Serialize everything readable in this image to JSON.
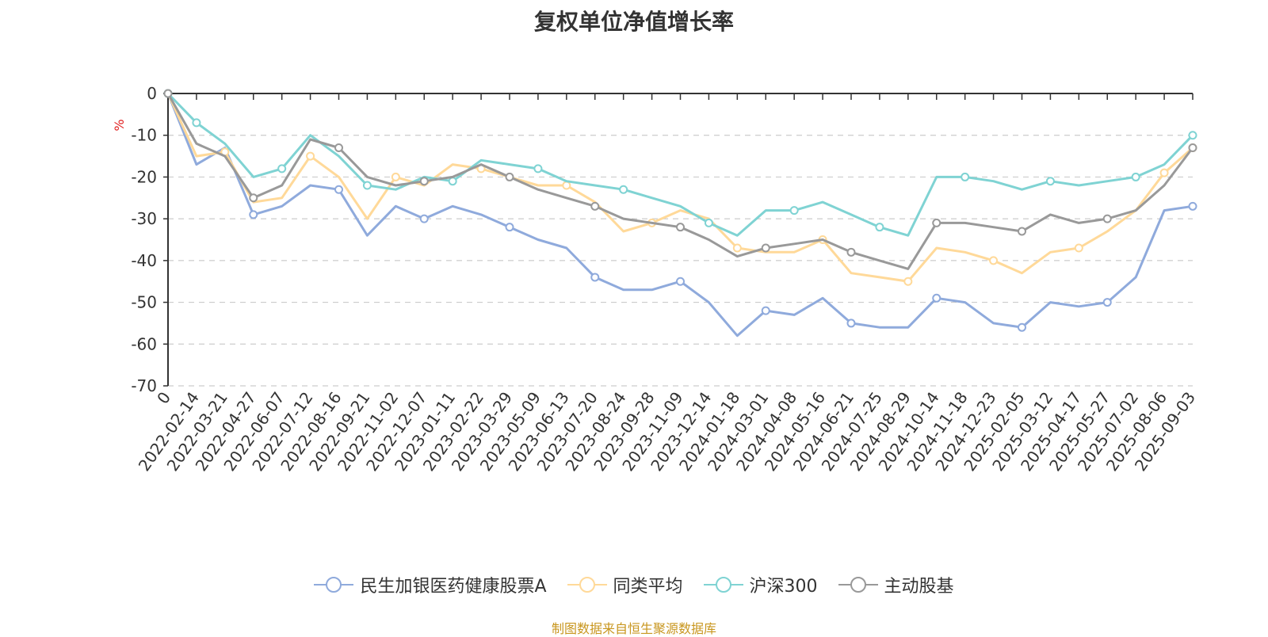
{
  "chart_data": {
    "type": "line",
    "title": "复权单位净值增长率",
    "ylabel": "%",
    "ylim": [
      -70,
      0
    ],
    "yticks": [
      "0",
      "-10",
      "-20",
      "-30",
      "-40",
      "-50",
      "-60",
      "-70"
    ],
    "x_ticks": [
      "0",
      "2022-02-14",
      "2022-03-21",
      "2022-04-27",
      "2022-06-07",
      "2022-07-12",
      "2022-08-16",
      "2022-09-21",
      "2022-11-02",
      "2022-12-07",
      "2023-01-11",
      "2023-02-22",
      "2023-03-29",
      "2023-05-09",
      "2023-06-13",
      "2023-07-20",
      "2023-08-24",
      "2023-09-28",
      "2023-11-09",
      "2023-12-14",
      "2024-01-18",
      "2024-03-01",
      "2024-04-08",
      "2024-05-16",
      "2024-06-21",
      "2024-07-25",
      "2024-08-29",
      "2024-10-14",
      "2024-11-18",
      "2024-12-23",
      "2025-02-05",
      "2025-03-12",
      "2025-04-17",
      "2025-05-27",
      "2025-07-02",
      "2025-08-06",
      "2025-09-03"
    ],
    "grid": true,
    "legend_position": "bottom",
    "series": [
      {
        "name": "民生加银医药健康股票A",
        "color": "#8faadc",
        "values": [
          0,
          -17,
          -13,
          -29,
          -27,
          -22,
          -23,
          -34,
          -27,
          -30,
          -27,
          -29,
          -32,
          -35,
          -37,
          -44,
          -47,
          -47,
          -45,
          -50,
          -58,
          -52,
          -53,
          -49,
          -55,
          -56,
          -56,
          -49,
          -50,
          -55,
          -56,
          -50,
          -51,
          -50,
          -44,
          -28,
          -27
        ]
      },
      {
        "name": "同类平均",
        "color": "#ffd999",
        "values": [
          0,
          -15,
          -14,
          -26,
          -25,
          -15,
          -20,
          -30,
          -20,
          -22,
          -17,
          -18,
          -20,
          -22,
          -22,
          -26,
          -33,
          -31,
          -28,
          -30,
          -37,
          -38,
          -38,
          -35,
          -43,
          -44,
          -45,
          -37,
          -38,
          -40,
          -43,
          -38,
          -37,
          -33,
          -28,
          -19,
          -13
        ]
      },
      {
        "name": "沪深300",
        "color": "#7fd3d3",
        "values": [
          0,
          -7,
          -12,
          -20,
          -18,
          -10,
          -15,
          -22,
          -23,
          -20,
          -21,
          -16,
          -17,
          -18,
          -21,
          -22,
          -23,
          -25,
          -27,
          -31,
          -34,
          -28,
          -28,
          -26,
          -29,
          -32,
          -34,
          -20,
          -20,
          -21,
          -23,
          -21,
          -22,
          -21,
          -20,
          -17,
          -10
        ]
      },
      {
        "name": "主动股基",
        "color": "#999999",
        "values": [
          0,
          -12,
          -15,
          -25,
          -22,
          -11,
          -13,
          -20,
          -22,
          -21,
          -20,
          -17,
          -20,
          -23,
          -25,
          -27,
          -30,
          -31,
          -32,
          -35,
          -39,
          -37,
          -36,
          -35,
          -38,
          -40,
          -42,
          -31,
          -31,
          -32,
          -33,
          -29,
          -31,
          -30,
          -28,
          -22,
          -13
        ]
      }
    ]
  },
  "legend": [
    {
      "label": "民生加银医药健康股票A",
      "color": "#8faadc"
    },
    {
      "label": "同类平均",
      "color": "#ffd999"
    },
    {
      "label": "沪深300",
      "color": "#7fd3d3"
    },
    {
      "label": "主动股基",
      "color": "#999999"
    }
  ],
  "source": "制图数据来自恒生聚源数据库"
}
